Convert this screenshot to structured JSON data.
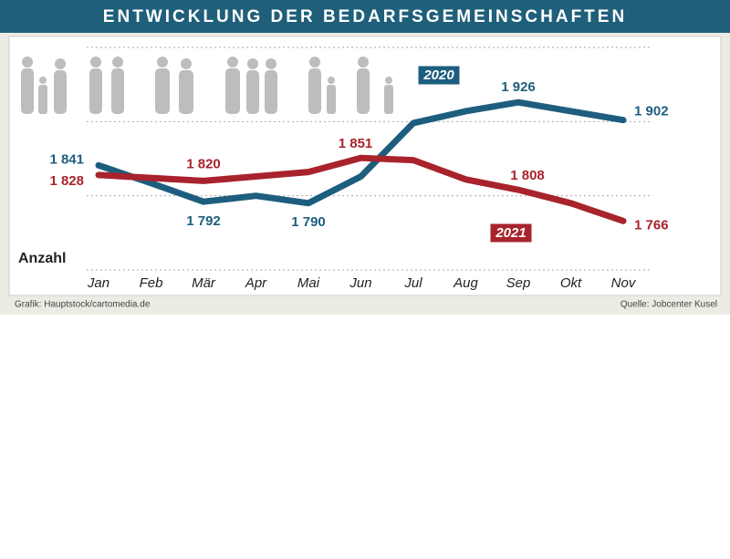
{
  "chart_data": {
    "type": "line",
    "title": "ENTWICKLUNG DER BEDARFSGEMEINSCHAFTEN",
    "y_label": "Anzahl",
    "categories": [
      "Jan",
      "Feb",
      "Mär",
      "Apr",
      "Mai",
      "Jun",
      "Jul",
      "Aug",
      "Sep",
      "Okt",
      "Nov"
    ],
    "series": [
      {
        "name": "2020",
        "color": "#1d5e7e",
        "values": [
          1841,
          1817,
          1792,
          1800,
          1790,
          1826,
          1898,
          1914,
          1926,
          1914,
          1902
        ],
        "value_labels": [
          "1 841",
          null,
          "1 792",
          null,
          "1 790",
          null,
          null,
          null,
          "1 926",
          null,
          "1 902"
        ]
      },
      {
        "name": "2021",
        "color": "#a8232c",
        "values": [
          1828,
          1824,
          1820,
          1826,
          1832,
          1851,
          1848,
          1822,
          1808,
          1790,
          1766
        ],
        "value_labels": [
          "1 828",
          null,
          "1 820",
          null,
          null,
          "1 851",
          null,
          null,
          "1 808",
          null,
          "1 766"
        ]
      }
    ],
    "ylim": [
      1700,
      2000
    ],
    "grid_values": [
      1700,
      1800,
      1900,
      2000
    ],
    "grid": true,
    "source_left": "Grafik: Hauptstock/cartomedia.de",
    "source_right": "Quelle: Jobcenter Kusel"
  }
}
